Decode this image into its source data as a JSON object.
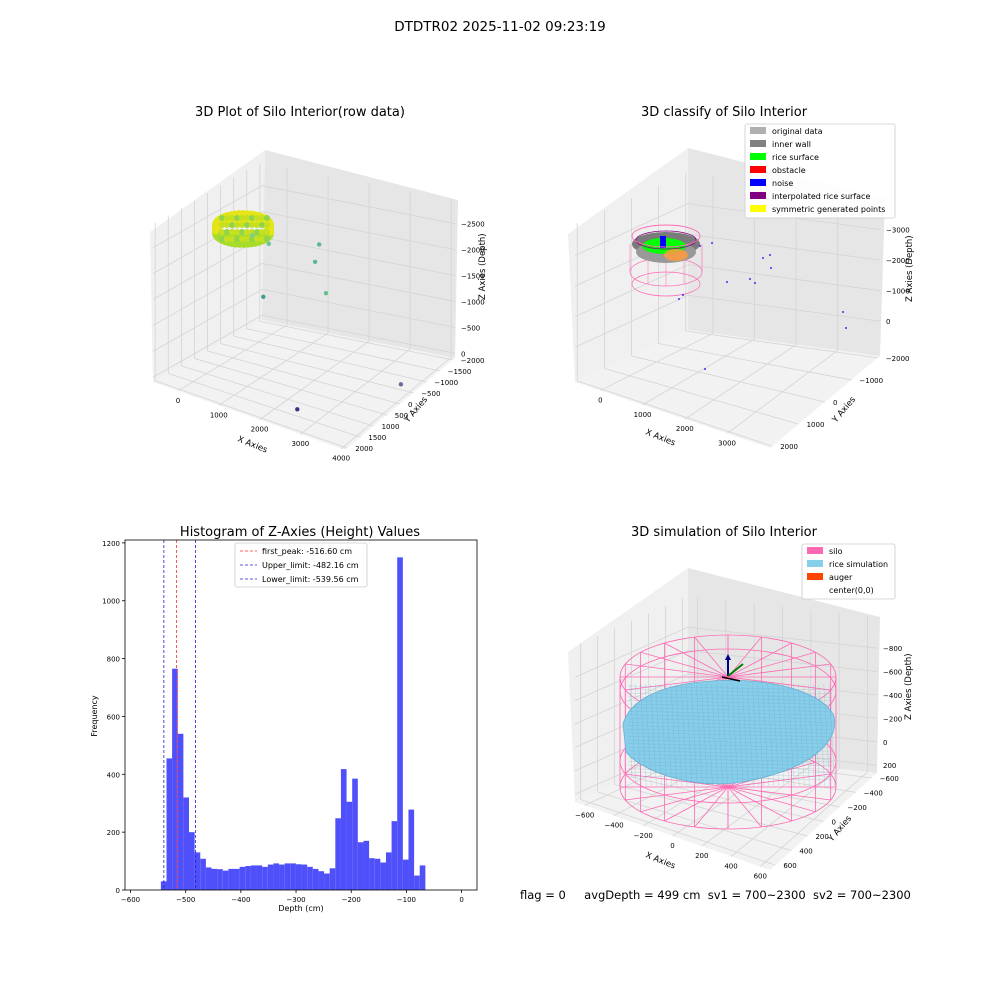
{
  "figure": {
    "suptitle": "DTDTR02 2025-11-02 09:23:19"
  },
  "footer": {
    "flag": "flag = 0",
    "avg_depth": "avgDepth = 499 cm",
    "sv1": "sv1 = 700~2300",
    "sv2": "sv2 = 700~2300"
  },
  "colors": {
    "histogram_bar": "#5050fa",
    "first_peak_line": "#ff3030",
    "limit_line": "#2020d0",
    "silo_wire": "#ff69b4",
    "rice_sim": "#87ceeb",
    "auger": "#ff4500",
    "original_data": "#b0b0b0",
    "inner_wall": "#808080",
    "rice_surface": "#00ff00",
    "obstacle": "#ff0000",
    "noise": "#0000ff",
    "interpolated": "#800080",
    "symmetric": "#ffff00"
  },
  "chart_data": [
    {
      "type": "scatter",
      "title": "3D Plot of Silo Interior(row data)",
      "xlabel": "X Axies",
      "ylabel": "Y Axies",
      "zlabel": "Z Axies (Depth)",
      "x_ticks": [
        "0",
        "1000",
        "2000",
        "3000",
        "4000"
      ],
      "y_ticks": [
        "−2000",
        "−1500",
        "−1000",
        "−500",
        "0",
        "500",
        "1000",
        "1500",
        "2000"
      ],
      "z_ticks": [
        "0",
        "−500",
        "−1000",
        "−1500",
        "−2000",
        "−2500"
      ],
      "xlim": [
        -700,
        4000
      ],
      "ylim": [
        -2000,
        2000
      ],
      "zlim": [
        -2700,
        100
      ],
      "points": [
        {
          "x": 200,
          "y": 300,
          "z": -500
        },
        {
          "x": 600,
          "y": 300,
          "z": -550
        },
        {
          "x": 1400,
          "y": 800,
          "z": -800
        },
        {
          "x": 1300,
          "y": 1100,
          "z": -600
        },
        {
          "x": 1800,
          "y": 600,
          "z": -1200
        },
        {
          "x": 800,
          "y": -200,
          "z": -1300
        },
        {
          "x": 3700,
          "y": 500,
          "z": -2300
        },
        {
          "x": 2500,
          "y": -1500,
          "z": -2500
        }
      ]
    },
    {
      "type": "scatter",
      "title": "3D classify of Silo Interior",
      "xlabel": "X Axies",
      "ylabel": "Y Axies",
      "zlabel": "Z Axies (Depth)",
      "x_ticks": [
        "0",
        "1000",
        "2000",
        "3000"
      ],
      "y_ticks": [
        "−2000",
        "−1000",
        "0",
        "1000",
        "2000"
      ],
      "z_ticks": [
        "0",
        "−1000",
        "−2000",
        "−3000"
      ],
      "legend": [
        {
          "label": "original data",
          "color_key": "original_data"
        },
        {
          "label": "inner wall",
          "color_key": "inner_wall"
        },
        {
          "label": "rice surface",
          "color_key": "rice_surface"
        },
        {
          "label": "obstacle",
          "color_key": "obstacle"
        },
        {
          "label": "noise",
          "color_key": "noise"
        },
        {
          "label": "interpolated rice surface",
          "color_key": "interpolated"
        },
        {
          "label": "symmetric generated points",
          "color_key": "symmetric"
        }
      ],
      "legend_loc": "top-right"
    },
    {
      "type": "bar",
      "title": "Histogram of Z-Axies (Height) Values",
      "xlabel": "Depth (cm)",
      "ylabel": "Frequency",
      "xlim": [
        -610,
        28
      ],
      "ylim": [
        0,
        1210
      ],
      "x_ticks": [
        -600,
        -500,
        -400,
        -300,
        -200,
        -100,
        0
      ],
      "y_ticks": [
        0,
        200,
        400,
        600,
        800,
        1000,
        1200
      ],
      "bin_start": -545,
      "bin_width": 10.2,
      "values": [
        30,
        455,
        765,
        540,
        320,
        200,
        130,
        108,
        78,
        73,
        72,
        67,
        73,
        73,
        80,
        83,
        85,
        85,
        80,
        88,
        92,
        88,
        92,
        92,
        89,
        88,
        80,
        73,
        65,
        57,
        75,
        248,
        418,
        305,
        385,
        165,
        170,
        110,
        108,
        95,
        130,
        238,
        1150,
        105,
        278,
        50,
        85
      ],
      "lines": [
        {
          "label": "first_peak: -516.60 cm",
          "x": -516.6,
          "color_key": "first_peak_line"
        },
        {
          "label": "Upper_limit: -482.16 cm",
          "x": -482.16,
          "color_key": "limit_line"
        },
        {
          "label": "Lower_limit: -539.56 cm",
          "x": -539.56,
          "color_key": "limit_line"
        }
      ],
      "legend_loc": "top-center"
    },
    {
      "type": "scatter",
      "title": "3D simulation of Silo Interior",
      "xlabel": "X Axies",
      "ylabel": "Y Axies",
      "zlabel": "Z Axies (Depth)",
      "x_ticks": [
        "−600",
        "−400",
        "−200",
        "0",
        "200",
        "400",
        "600"
      ],
      "y_ticks": [
        "−600",
        "−400",
        "−200",
        "0",
        "200",
        "400",
        "600"
      ],
      "z_ticks": [
        "200",
        "0",
        "−200",
        "−400",
        "−600",
        "−800"
      ],
      "legend": [
        {
          "label": "silo",
          "color_key": "silo_wire"
        },
        {
          "label": "rice simulation",
          "color_key": "rice_sim"
        },
        {
          "label": "auger",
          "color_key": "auger"
        },
        {
          "label": "center(0,0)",
          "color_key": ""
        }
      ],
      "legend_loc": "top-right"
    }
  ]
}
